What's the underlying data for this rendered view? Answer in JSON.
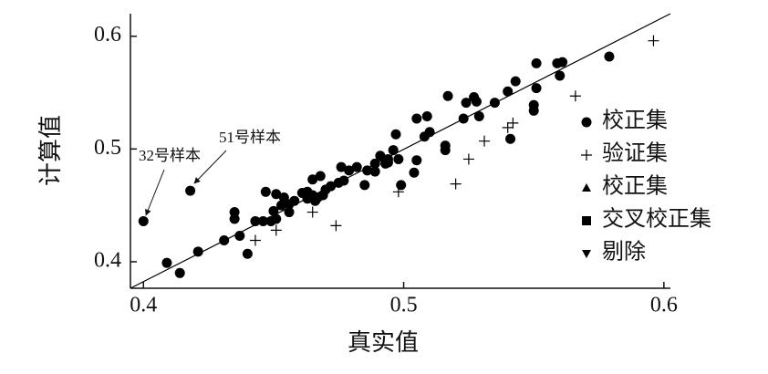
{
  "chart_data": {
    "type": "scatter",
    "xlabel": "真实值",
    "ylabel": "计算值",
    "xlim": [
      0.395,
      0.6025
    ],
    "ylim": [
      0.3765,
      0.62
    ],
    "xticks": [
      0.4,
      0.5,
      0.6
    ],
    "yticks": [
      0.4,
      0.5,
      0.6
    ],
    "reference_line": {
      "x": [
        0.395,
        0.6025
      ],
      "y": [
        0.3765,
        0.62
      ],
      "color": "#000000"
    },
    "series": [
      {
        "name": "校正集",
        "marker": "circle",
        "color": "#000000",
        "x": [
          0.4,
          0.418,
          0.409,
          0.414,
          0.421,
          0.431,
          0.435,
          0.435,
          0.437,
          0.44,
          0.443,
          0.446,
          0.447,
          0.449,
          0.45,
          0.451,
          0.451,
          0.453,
          0.454,
          0.456,
          0.456,
          0.458,
          0.461,
          0.463,
          0.463,
          0.465,
          0.466,
          0.465,
          0.467,
          0.468,
          0.469,
          0.47,
          0.472,
          0.475,
          0.476,
          0.477,
          0.479,
          0.482,
          0.485,
          0.486,
          0.489,
          0.489,
          0.491,
          0.493,
          0.494,
          0.494,
          0.496,
          0.497,
          0.498,
          0.499,
          0.504,
          0.505,
          0.505,
          0.508,
          0.509,
          0.51,
          0.516,
          0.516,
          0.517,
          0.523,
          0.524,
          0.527,
          0.528,
          0.529,
          0.535,
          0.54,
          0.541,
          0.543,
          0.55,
          0.55,
          0.551,
          0.551,
          0.559,
          0.56,
          0.561,
          0.579
        ],
        "values": [
          0.436,
          0.463,
          0.399,
          0.39,
          0.409,
          0.419,
          0.444,
          0.438,
          0.423,
          0.407,
          0.436,
          0.436,
          0.462,
          0.436,
          0.445,
          0.438,
          0.46,
          0.45,
          0.457,
          0.444,
          0.451,
          0.454,
          0.461,
          0.462,
          0.456,
          0.459,
          0.454,
          0.473,
          0.457,
          0.476,
          0.459,
          0.464,
          0.467,
          0.47,
          0.484,
          0.472,
          0.481,
          0.484,
          0.468,
          0.481,
          0.487,
          0.48,
          0.494,
          0.487,
          0.491,
          0.488,
          0.499,
          0.513,
          0.491,
          0.468,
          0.479,
          0.49,
          0.527,
          0.511,
          0.529,
          0.515,
          0.503,
          0.499,
          0.547,
          0.527,
          0.541,
          0.546,
          0.542,
          0.529,
          0.541,
          0.551,
          0.509,
          0.56,
          0.539,
          0.534,
          0.554,
          0.576,
          0.576,
          0.565,
          0.577,
          0.582
        ]
      },
      {
        "name": "验证集",
        "marker": "plus",
        "color": "#000000",
        "x": [
          0.443,
          0.451,
          0.465,
          0.474,
          0.498,
          0.52,
          0.525,
          0.531,
          0.54,
          0.542,
          0.566,
          0.596
        ],
        "values": [
          0.419,
          0.428,
          0.444,
          0.432,
          0.462,
          0.469,
          0.491,
          0.507,
          0.519,
          0.523,
          0.547,
          0.596
        ]
      },
      {
        "name": "校正集",
        "marker": "triangle-up",
        "color": "#000000",
        "x": [],
        "values": []
      },
      {
        "name": "交叉校正集",
        "marker": "square",
        "color": "#000000",
        "x": [],
        "values": []
      },
      {
        "name": "剔除",
        "marker": "triangle-down",
        "color": "#000000",
        "x": [],
        "values": []
      }
    ],
    "annotations": [
      {
        "text": "32号样本"
      },
      {
        "text": "51号样本"
      }
    ]
  }
}
